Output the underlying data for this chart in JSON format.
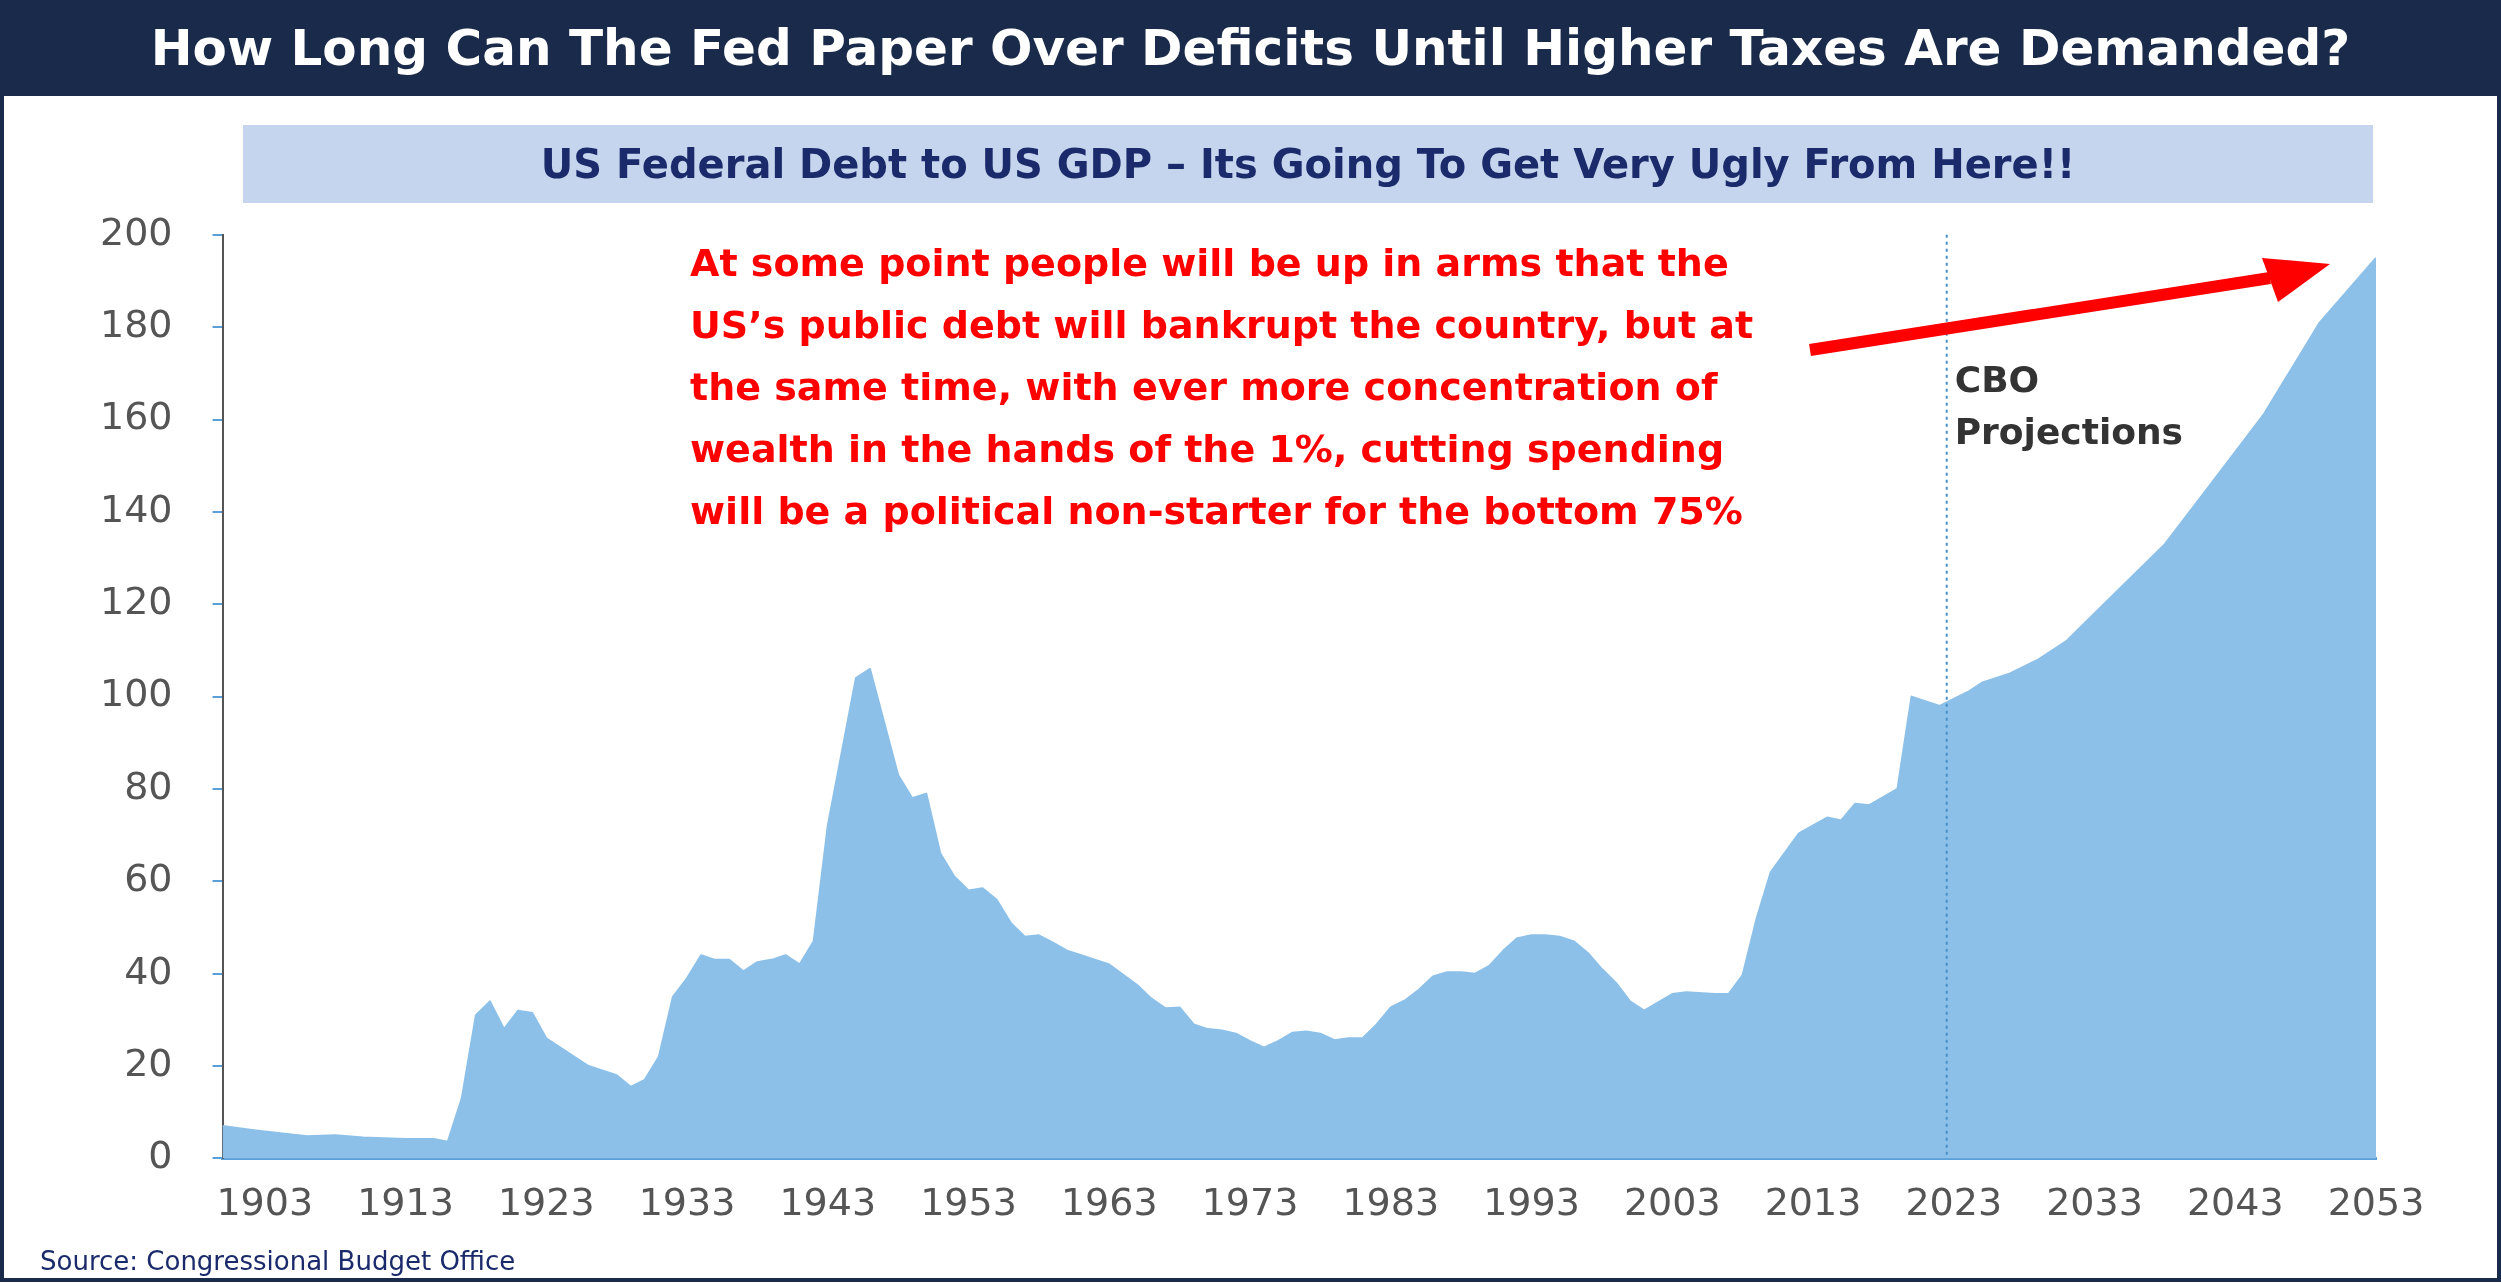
{
  "chart_data": {
    "type": "area",
    "title": "How Long Can The Fed Paper Over Deficits Until Higher Taxes Are Demanded?",
    "subtitle": "US Federal Debt to US GDP – Its Going To Get Very Ugly From Here!!",
    "x": [
      1900,
      1903,
      1906,
      1908,
      1910,
      1913,
      1915,
      1916,
      1917,
      1918,
      1919,
      1920,
      1921,
      1922,
      1923,
      1924,
      1926,
      1928,
      1929,
      1930,
      1931,
      1932,
      1933,
      1934,
      1935,
      1936,
      1937,
      1938,
      1939,
      1940,
      1941,
      1942,
      1943,
      1945,
      1946,
      1948,
      1949,
      1950,
      1951,
      1952,
      1953,
      1954,
      1955,
      1956,
      1957,
      1958,
      1959,
      1960,
      1961,
      1963,
      1965,
      1966,
      1967,
      1968,
      1969,
      1970,
      1971,
      1972,
      1973,
      1974,
      1975,
      1976,
      1977,
      1978,
      1979,
      1980,
      1981,
      1982,
      1983,
      1984,
      1985,
      1986,
      1987,
      1988,
      1989,
      1990,
      1991,
      1992,
      1993,
      1994,
      1995,
      1996,
      1997,
      1998,
      1999,
      2000,
      2001,
      2003,
      2004,
      2006,
      2007,
      2008,
      2009,
      2010,
      2012,
      2014,
      2015,
      2016,
      2017,
      2019,
      2020,
      2022,
      2024,
      2025,
      2027,
      2029,
      2031,
      2032,
      2035,
      2038,
      2041,
      2045,
      2049,
      2053
    ],
    "series": [
      {
        "color": "#8cc0e8",
        "values": [
          7,
          5.8,
          4.8,
          5,
          4.5,
          4.2,
          4.2,
          3.6,
          13,
          31,
          34,
          28,
          32,
          31.5,
          26,
          24,
          20,
          18,
          15.5,
          17,
          22,
          35,
          39,
          44,
          43,
          43,
          40.5,
          42.5,
          43,
          44,
          42,
          47,
          72,
          104,
          106,
          83,
          78,
          79,
          66,
          61,
          58,
          58.5,
          56,
          51,
          48,
          48.3,
          46.7,
          45,
          44,
          42,
          37.5,
          34.6,
          32.5,
          32.7,
          29,
          28,
          27.7,
          27,
          25.4,
          24,
          25.4,
          27.2,
          27.5,
          27,
          25.6,
          26,
          26,
          29,
          32.7,
          34.2,
          36.5,
          39.4,
          40.3,
          40.3,
          40,
          41.7,
          45,
          47.7,
          48.3,
          48.3,
          48,
          47,
          44.5,
          41,
          38,
          34,
          32,
          35.6,
          36,
          35.6,
          35.6,
          39.7,
          52,
          62,
          70.4,
          73.8,
          73.2,
          76.8,
          76.5,
          80,
          100,
          98,
          101,
          103,
          105,
          108,
          112,
          115,
          124,
          133,
          145,
          161,
          181,
          195
        ]
      }
    ],
    "xlim": [
      1900,
      2053
    ],
    "xticks": [
      1903,
      1913,
      1923,
      1933,
      1943,
      1953,
      1963,
      1973,
      1983,
      1993,
      2003,
      2013,
      2023,
      2033,
      2043,
      2053
    ],
    "ylim": [
      0,
      200
    ],
    "yticks": [
      0,
      20,
      40,
      60,
      80,
      100,
      120,
      140,
      160,
      180,
      200
    ],
    "grid": false,
    "legend": false,
    "ref_lines": [
      {
        "axis": "x",
        "value": 2022.5,
        "label": "CBO Projections",
        "color": "#4a90c8",
        "line_style": "dotted"
      }
    ],
    "annotations": [
      "At some point people will be up in arms that the US’s public debt will bankrupt the country, but at the same time, with ever more concentration of wealth in the hands of the 1%, cutting spending will be a political non-starter for the bottom 75%",
      "Source: Congressional Budget Office"
    ]
  }
}
